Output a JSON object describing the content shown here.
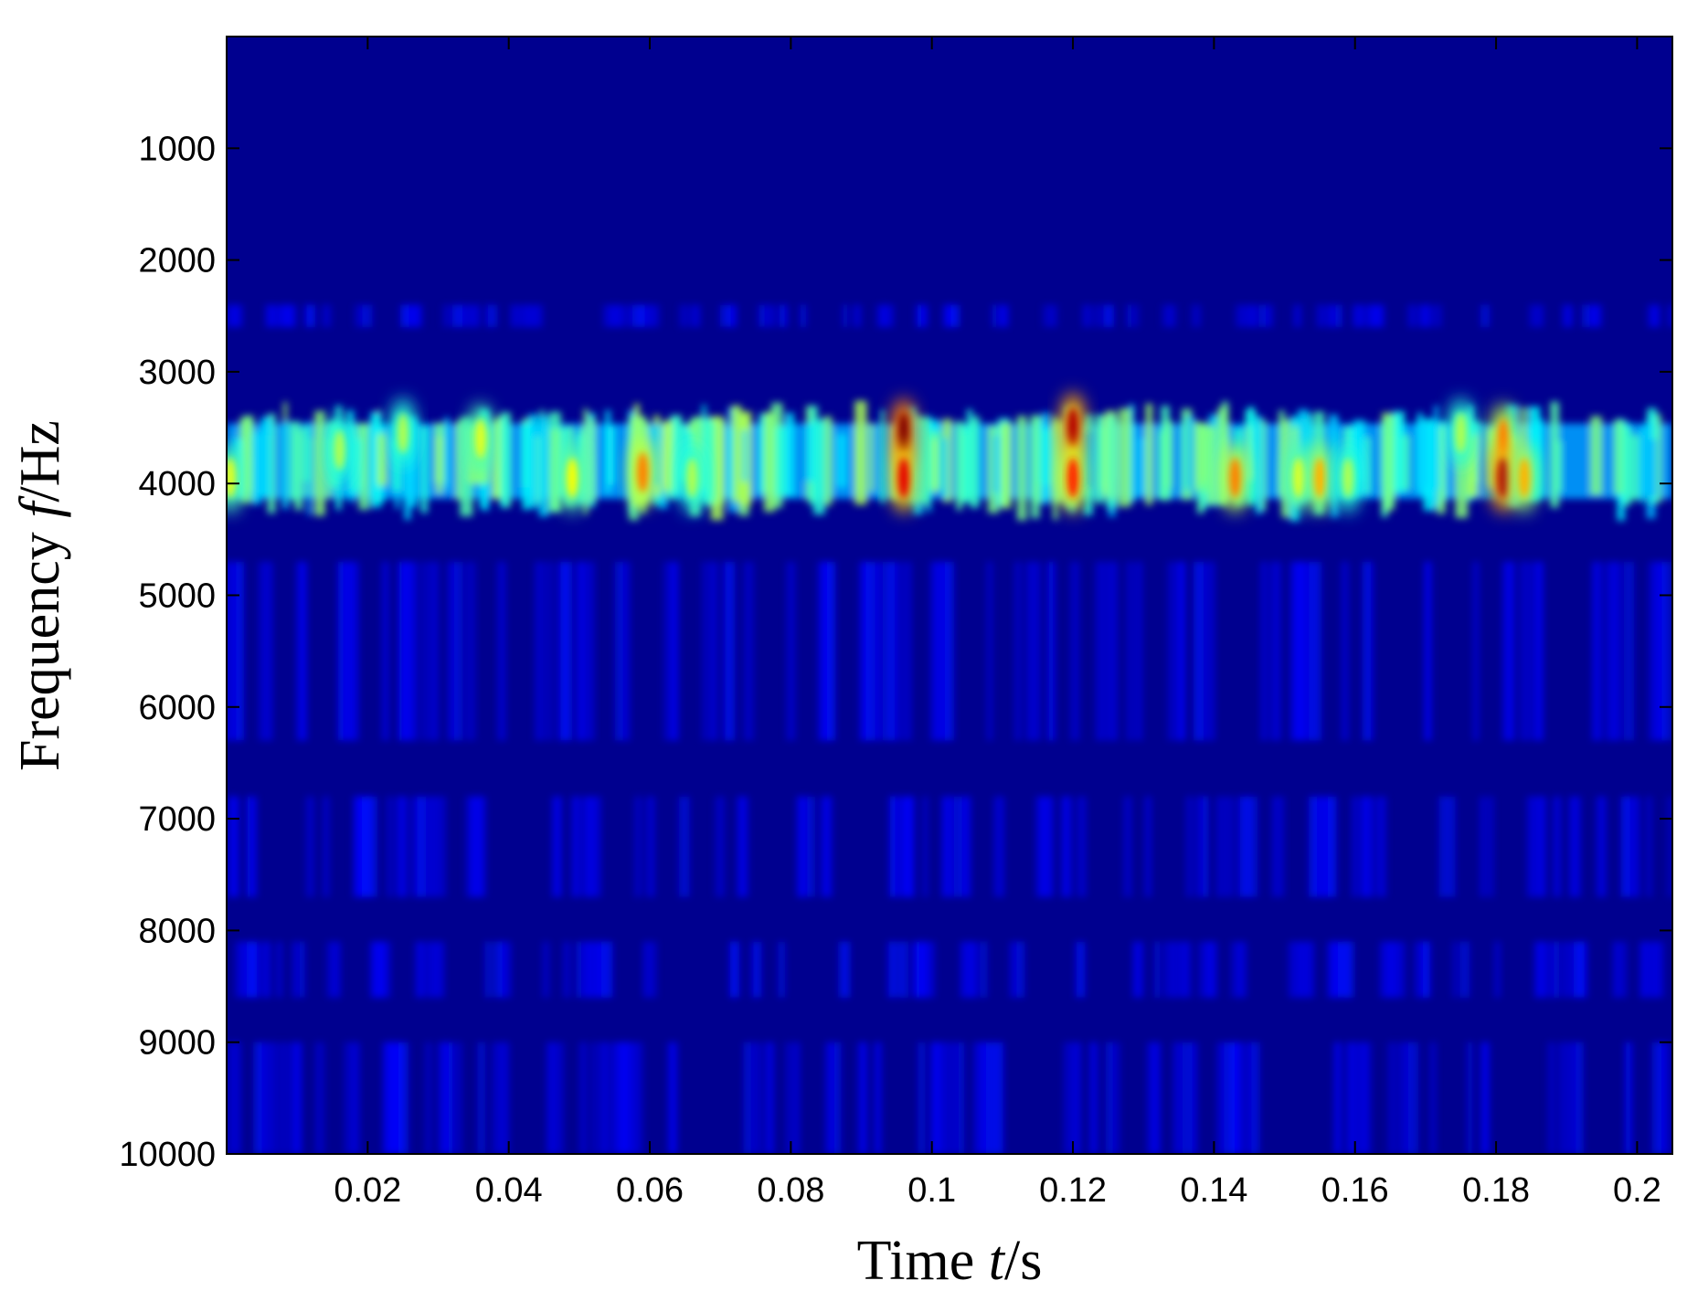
{
  "chart_data": {
    "type": "heatmap",
    "title": "",
    "xlabel": {
      "prefix": "Time ",
      "var": "t",
      "suffix": "/s"
    },
    "ylabel": {
      "prefix": "Frequency ",
      "var": "f",
      "suffix": "/Hz"
    },
    "xlim": [
      0,
      0.205
    ],
    "ylim": [
      10000,
      0
    ],
    "y_reversed": true,
    "x_ticks": [
      0.02,
      0.04,
      0.06,
      0.08,
      0.1,
      0.12,
      0.14,
      0.16,
      0.18,
      0.2
    ],
    "x_tick_labels": [
      "0.02",
      "0.04",
      "0.06",
      "0.08",
      "0.1",
      "0.12",
      "0.14",
      "0.16",
      "0.18",
      "0.2"
    ],
    "y_ticks": [
      1000,
      2000,
      3000,
      4000,
      5000,
      6000,
      7000,
      8000,
      9000,
      10000
    ],
    "y_tick_labels": [
      "1000",
      "2000",
      "3000",
      "4000",
      "5000",
      "6000",
      "7000",
      "8000",
      "9000",
      "10000"
    ],
    "colormap": "jet",
    "background_color": "#00008f",
    "grid": false,
    "dominant_band_hz": [
      3300,
      4300
    ],
    "hotspots": [
      {
        "t": 0.0005,
        "f": 3950,
        "intensity": 0.6
      },
      {
        "t": 0.016,
        "f": 3700,
        "intensity": 0.55
      },
      {
        "t": 0.025,
        "f": 3550,
        "intensity": 0.55
      },
      {
        "t": 0.036,
        "f": 3600,
        "intensity": 0.6
      },
      {
        "t": 0.049,
        "f": 3950,
        "intensity": 0.62
      },
      {
        "t": 0.059,
        "f": 3900,
        "intensity": 0.75
      },
      {
        "t": 0.066,
        "f": 3950,
        "intensity": 0.55
      },
      {
        "t": 0.096,
        "f": 3550,
        "intensity": 1.0
      },
      {
        "t": 0.096,
        "f": 3950,
        "intensity": 0.9
      },
      {
        "t": 0.12,
        "f": 3500,
        "intensity": 0.95
      },
      {
        "t": 0.12,
        "f": 3950,
        "intensity": 0.85
      },
      {
        "t": 0.143,
        "f": 3950,
        "intensity": 0.75
      },
      {
        "t": 0.152,
        "f": 3950,
        "intensity": 0.6
      },
      {
        "t": 0.155,
        "f": 3950,
        "intensity": 0.7
      },
      {
        "t": 0.159,
        "f": 3950,
        "intensity": 0.55
      },
      {
        "t": 0.175,
        "f": 3550,
        "intensity": 0.55
      },
      {
        "t": 0.181,
        "f": 3600,
        "intensity": 0.75
      },
      {
        "t": 0.181,
        "f": 3950,
        "intensity": 0.95
      },
      {
        "t": 0.184,
        "f": 3950,
        "intensity": 0.7
      }
    ],
    "faint_bands_hz": [
      [
        4700,
        6300
      ],
      [
        6800,
        7700
      ],
      [
        8100,
        8600
      ],
      [
        9000,
        10000
      ],
      [
        2400,
        2600
      ]
    ]
  }
}
